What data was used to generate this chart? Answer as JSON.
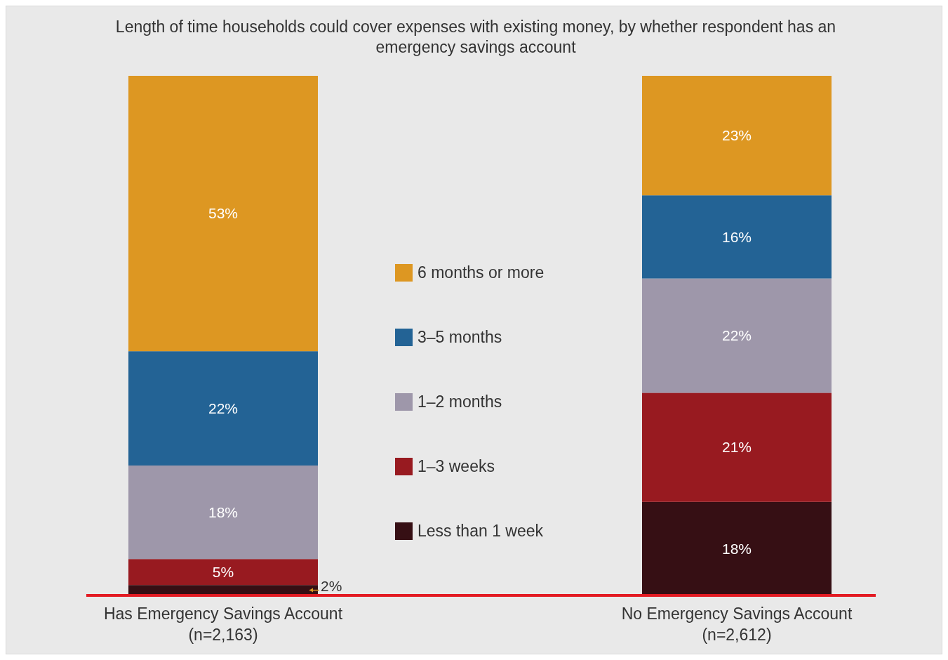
{
  "chart_data": {
    "type": "bar",
    "title": "Length of time households could cover expenses with existing money, by whether respondent has an emergency savings account",
    "categories": [
      "Has Emergency Savings Account\n(n=2,163)",
      "No Emergency Savings Account\n(n=2,612)"
    ],
    "stacked": true,
    "legend": "center",
    "series": [
      {
        "name": "Less than 1 week",
        "color": "#360f14",
        "values": [
          2,
          18
        ],
        "value_labels": [
          "2%",
          "18%"
        ]
      },
      {
        "name": "1–3 weeks",
        "color": "#981a20",
        "values": [
          5,
          21
        ],
        "value_labels": [
          "5%",
          "21%"
        ]
      },
      {
        "name": "1–2 months",
        "color": "#9e97aa",
        "values": [
          18,
          22
        ],
        "value_labels": [
          "18%",
          "22%"
        ]
      },
      {
        "name": "3–5 months",
        "color": "#236395",
        "values": [
          22,
          16
        ],
        "value_labels": [
          "22%",
          "16%"
        ]
      },
      {
        "name": "6 months or more",
        "color": "#dd9722",
        "values": [
          53,
          23
        ],
        "value_labels": [
          "53%",
          "23%"
        ]
      }
    ]
  }
}
